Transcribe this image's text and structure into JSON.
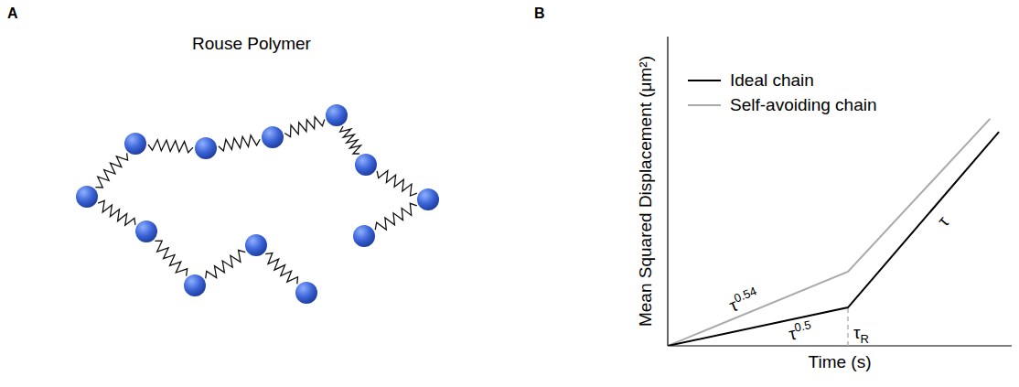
{
  "panels": {
    "a": {
      "letter": "A",
      "title": "Rouse Polymer"
    },
    "b": {
      "letter": "B"
    }
  },
  "chart_data": {
    "type": "line",
    "x_label": "Time (s)",
    "y_label": "Mean Squared Displacement (μm²)",
    "xlim": [
      0,
      100
    ],
    "ylim": [
      0,
      100
    ],
    "xticks": [],
    "yticks": [],
    "tick_labels": false,
    "grid": false,
    "legend": "upper left",
    "series": [
      {
        "name": "Ideal chain",
        "color": "#000000",
        "x": [
          0,
          52.4,
          96.3
        ],
        "values": [
          0,
          12.4,
          69.2
        ]
      },
      {
        "name": "Self-avoiding chain",
        "color": "#aaaaaa",
        "x": [
          0,
          52.4,
          93.7
        ],
        "values": [
          0,
          24,
          73.4
        ]
      }
    ],
    "annotations": [
      {
        "text": "τ",
        "sup": "0.54"
      },
      {
        "text": "τ",
        "sup": "0.5"
      },
      {
        "text": "τ"
      }
    ],
    "vline": {
      "x": 52.4,
      "text": "τ",
      "sub": "R",
      "color": "#aaaaaa",
      "line_style": "dashed"
    }
  }
}
